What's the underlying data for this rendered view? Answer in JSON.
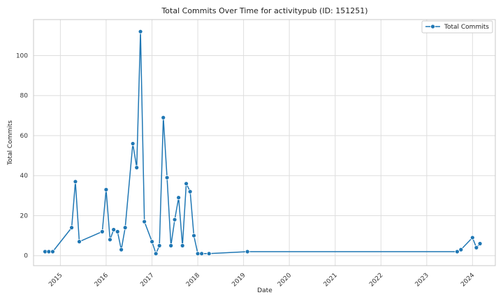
{
  "chart_data": {
    "type": "line",
    "title": "Total Commits Over Time for activitypub (ID: 151251)",
    "xlabel": "Date",
    "ylabel": "Total Commits",
    "xlim": [
      "2014-06-01",
      "2024-07-01"
    ],
    "ylim": [
      -5,
      118
    ],
    "xticks": [
      {
        "date": "2015-01-01",
        "label": "2015"
      },
      {
        "date": "2016-01-01",
        "label": "2016"
      },
      {
        "date": "2017-01-01",
        "label": "2017"
      },
      {
        "date": "2018-01-01",
        "label": "2018"
      },
      {
        "date": "2019-01-01",
        "label": "2019"
      },
      {
        "date": "2020-01-01",
        "label": "2020"
      },
      {
        "date": "2021-01-01",
        "label": "2021"
      },
      {
        "date": "2022-01-01",
        "label": "2022"
      },
      {
        "date": "2023-01-01",
        "label": "2023"
      },
      {
        "date": "2024-01-01",
        "label": "2024"
      }
    ],
    "yticks": [
      {
        "value": 0,
        "label": "0"
      },
      {
        "value": 20,
        "label": "20"
      },
      {
        "value": 40,
        "label": "40"
      },
      {
        "value": 60,
        "label": "60"
      },
      {
        "value": 80,
        "label": "80"
      },
      {
        "value": 100,
        "label": "100"
      }
    ],
    "grid": true,
    "legend_position": "top-right",
    "series": [
      {
        "name": "Total Commits",
        "color": "#1f77b4",
        "marker": "circle",
        "points": [
          {
            "date": "2014-09-01",
            "value": 2
          },
          {
            "date": "2014-10-01",
            "value": 2
          },
          {
            "date": "2014-11-01",
            "value": 2
          },
          {
            "date": "2015-04-01",
            "value": 14
          },
          {
            "date": "2015-05-01",
            "value": 37
          },
          {
            "date": "2015-06-01",
            "value": 7
          },
          {
            "date": "2015-12-01",
            "value": 12
          },
          {
            "date": "2016-01-01",
            "value": 33
          },
          {
            "date": "2016-02-01",
            "value": 8
          },
          {
            "date": "2016-03-01",
            "value": 13
          },
          {
            "date": "2016-04-01",
            "value": 12
          },
          {
            "date": "2016-05-01",
            "value": 3
          },
          {
            "date": "2016-06-01",
            "value": 14
          },
          {
            "date": "2016-08-01",
            "value": 56
          },
          {
            "date": "2016-09-01",
            "value": 44
          },
          {
            "date": "2016-10-01",
            "value": 112
          },
          {
            "date": "2016-11-01",
            "value": 17
          },
          {
            "date": "2017-01-01",
            "value": 7
          },
          {
            "date": "2017-02-01",
            "value": 1
          },
          {
            "date": "2017-03-01",
            "value": 5
          },
          {
            "date": "2017-04-01",
            "value": 69
          },
          {
            "date": "2017-05-01",
            "value": 39
          },
          {
            "date": "2017-06-01",
            "value": 5
          },
          {
            "date": "2017-07-01",
            "value": 18
          },
          {
            "date": "2017-08-01",
            "value": 29
          },
          {
            "date": "2017-09-01",
            "value": 5
          },
          {
            "date": "2017-10-01",
            "value": 36
          },
          {
            "date": "2017-11-01",
            "value": 32
          },
          {
            "date": "2017-12-01",
            "value": 10
          },
          {
            "date": "2018-01-01",
            "value": 1
          },
          {
            "date": "2018-02-01",
            "value": 1
          },
          {
            "date": "2018-04-01",
            "value": 1
          },
          {
            "date": "2019-02-01",
            "value": 2
          },
          {
            "date": "2023-09-01",
            "value": 2
          },
          {
            "date": "2023-10-01",
            "value": 3
          },
          {
            "date": "2024-01-01",
            "value": 9
          },
          {
            "date": "2024-02-01",
            "value": 4
          },
          {
            "date": "2024-03-01",
            "value": 6
          }
        ]
      }
    ]
  }
}
